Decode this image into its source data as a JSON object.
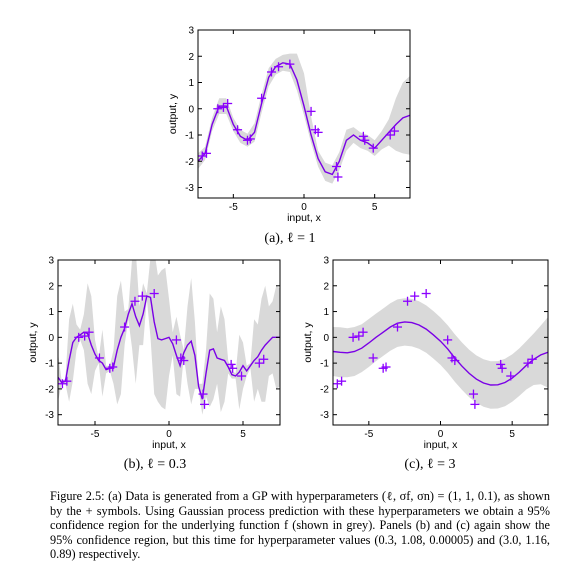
{
  "panels": [
    {
      "id": "a",
      "caption": "(a), ℓ = 1",
      "chart_data": {
        "type": "line",
        "xlabel": "input, x",
        "ylabel": "output, y",
        "xlim": [
          -7.5,
          7.5
        ],
        "ylim": [
          -3.4,
          3.0
        ],
        "xticks": [
          -5,
          0,
          5
        ],
        "yticks": [
          -3,
          -2,
          -1,
          0,
          1,
          2,
          3
        ],
        "series": [
          {
            "type": "line",
            "x": [
              -7.5,
              -7.0,
              -6.5,
              -6.0,
              -5.5,
              -5.0,
              -4.5,
              -4.0,
              -3.5,
              -3.0,
              -2.5,
              -2.0,
              -1.5,
              -1.0,
              -0.5,
              0.0,
              0.5,
              1.0,
              1.5,
              2.0,
              2.5,
              3.0,
              3.5,
              4.0,
              4.5,
              5.0,
              5.5,
              6.0,
              6.5,
              7.0,
              7.5
            ],
            "y": [
              -2.0,
              -1.7,
              -0.6,
              0.1,
              0.1,
              -0.6,
              -1.05,
              -1.2,
              -0.9,
              0.2,
              1.2,
              1.6,
              1.75,
              1.7,
              1.1,
              0.1,
              -1.0,
              -1.9,
              -2.4,
              -2.5,
              -2.0,
              -1.2,
              -1.0,
              -1.2,
              -1.3,
              -1.5,
              -1.2,
              -0.9,
              -0.6,
              -0.35,
              -0.25
            ]
          },
          {
            "type": "band",
            "x": [
              -7.5,
              -7.0,
              -6.5,
              -6.0,
              -5.5,
              -5.0,
              -4.5,
              -4.0,
              -3.5,
              -3.0,
              -2.5,
              -2.0,
              -1.5,
              -1.0,
              -0.5,
              0.0,
              0.5,
              1.0,
              1.5,
              2.0,
              2.5,
              3.0,
              3.5,
              4.0,
              4.5,
              5.0,
              5.5,
              6.0,
              6.5,
              7.0,
              7.5
            ],
            "lower": [
              -2.3,
              -1.95,
              -0.85,
              -0.2,
              -0.2,
              -0.85,
              -1.3,
              -1.45,
              -1.25,
              -0.15,
              0.85,
              1.3,
              1.45,
              1.4,
              0.7,
              -0.25,
              -1.3,
              -2.2,
              -2.75,
              -2.85,
              -2.35,
              -1.6,
              -1.3,
              -1.5,
              -1.6,
              -1.8,
              -1.55,
              -1.4,
              -1.6,
              -1.7,
              -1.75
            ],
            "upper": [
              -1.7,
              -1.45,
              -0.35,
              0.4,
              0.4,
              -0.35,
              -0.8,
              -0.95,
              -0.55,
              0.55,
              1.55,
              1.9,
              2.05,
              2.1,
              2.1,
              1.35,
              -0.3,
              -1.6,
              -2.05,
              -2.15,
              -1.65,
              -0.8,
              -0.7,
              -0.9,
              -1.0,
              -1.2,
              -0.85,
              -0.4,
              0.4,
              1.0,
              1.25
            ]
          },
          {
            "type": "scatter",
            "marker": "+",
            "x": [
              -7.2,
              -6.9,
              -6.1,
              -5.7,
              -5.4,
              -4.7,
              -4.0,
              -3.8,
              -3.0,
              -2.3,
              -1.8,
              -1.0,
              0.5,
              0.8,
              1.0,
              2.3,
              2.4,
              4.2,
              4.3,
              4.9,
              6.1,
              6.4
            ],
            "y": [
              -1.8,
              -1.7,
              0.0,
              0.05,
              0.2,
              -0.8,
              -1.2,
              -1.15,
              0.4,
              1.4,
              1.6,
              1.7,
              -0.1,
              -0.8,
              -0.9,
              -2.2,
              -2.6,
              -1.05,
              -1.2,
              -1.5,
              -1.0,
              -0.85
            ]
          }
        ]
      }
    },
    {
      "id": "b",
      "caption": "(b), ℓ = 0.3",
      "chart_data": {
        "type": "line",
        "xlabel": "input, x",
        "ylabel": "output, y",
        "xlim": [
          -7.5,
          7.5
        ],
        "ylim": [
          -3.4,
          3.0
        ],
        "xticks": [
          -5,
          0,
          5
        ],
        "yticks": [
          -3,
          -2,
          -1,
          0,
          1,
          2,
          3
        ],
        "series": [
          {
            "type": "line",
            "x": [
              -7.5,
              -7.25,
              -7.0,
              -6.75,
              -6.5,
              -6.25,
              -6.0,
              -5.75,
              -5.5,
              -5.25,
              -5.0,
              -4.75,
              -4.5,
              -4.25,
              -4.0,
              -3.75,
              -3.5,
              -3.25,
              -3.0,
              -2.75,
              -2.5,
              -2.25,
              -2.0,
              -1.75,
              -1.5,
              -1.25,
              -1.0,
              -0.75,
              -0.5,
              -0.25,
              0.0,
              0.25,
              0.5,
              0.75,
              1.0,
              1.25,
              1.5,
              1.75,
              2.0,
              2.25,
              2.5,
              2.75,
              3.0,
              3.25,
              3.5,
              3.75,
              4.0,
              4.25,
              4.5,
              4.75,
              5.0,
              5.25,
              5.5,
              5.75,
              6.0,
              6.25,
              6.5,
              6.75,
              7.0,
              7.25,
              7.5
            ],
            "y": [
              -1.55,
              -1.75,
              -1.7,
              -0.9,
              -0.2,
              0.0,
              0.1,
              0.2,
              0.15,
              -0.3,
              -0.65,
              -0.9,
              -1.0,
              -1.25,
              -1.2,
              -1.15,
              -0.5,
              0.0,
              0.35,
              0.9,
              1.3,
              0.8,
              0.45,
              0.9,
              1.6,
              1.55,
              0.6,
              -0.05,
              -0.1,
              -0.05,
              0.0,
              -0.25,
              -0.7,
              -1.1,
              -0.6,
              -0.3,
              -0.15,
              -0.7,
              -1.9,
              -2.4,
              -1.4,
              -0.5,
              -0.45,
              -0.8,
              -0.85,
              -0.9,
              -1.15,
              -1.45,
              -1.5,
              -1.35,
              -1.1,
              -1.3,
              -1.1,
              -0.9,
              -0.75,
              -0.5,
              -0.3,
              -0.15,
              0.0,
              0.0,
              0.0
            ]
          },
          {
            "type": "band",
            "x": [
              -7.5,
              -7.25,
              -7.0,
              -6.75,
              -6.5,
              -6.25,
              -6.0,
              -5.75,
              -5.5,
              -5.25,
              -5.0,
              -4.75,
              -4.5,
              -4.25,
              -4.0,
              -3.75,
              -3.5,
              -3.25,
              -3.0,
              -2.75,
              -2.5,
              -2.25,
              -2.0,
              -1.75,
              -1.5,
              -1.25,
              -1.0,
              -0.75,
              -0.5,
              -0.25,
              0.0,
              0.25,
              0.5,
              0.75,
              1.0,
              1.25,
              1.5,
              1.75,
              2.0,
              2.25,
              2.5,
              2.75,
              3.0,
              3.25,
              3.5,
              3.75,
              4.0,
              4.25,
              4.5,
              4.75,
              5.0,
              5.25,
              5.5,
              5.75,
              6.0,
              6.25,
              6.5,
              6.75,
              7.0,
              7.25,
              7.5
            ],
            "lower": [
              -2.5,
              -1.8,
              -1.8,
              -2.5,
              -1.7,
              -0.5,
              -0.1,
              -0.5,
              -1.8,
              -2.2,
              -1.3,
              -1.0,
              -2.3,
              -1.4,
              -1.3,
              -1.8,
              -2.6,
              -2.2,
              -0.3,
              0.7,
              -0.4,
              -1.8,
              -0.3,
              -0.3,
              1.5,
              0.0,
              -2.2,
              -2.5,
              -2.7,
              -2.8,
              -1.5,
              -0.7,
              -2.2,
              -2.3,
              -0.7,
              -1.8,
              -2.6,
              -2.0,
              -2.0,
              -3.0,
              -2.3,
              -2.7,
              -2.4,
              -1.8,
              -2.9,
              -2.5,
              -1.4,
              -1.6,
              -1.6,
              -2.8,
              -2.0,
              -1.5,
              -1.2,
              -2.5,
              -2.0,
              -2.5,
              -2.5,
              -1.5,
              -1.4,
              -2.0,
              -1.9
            ],
            "upper": [
              -0.6,
              -1.7,
              -1.6,
              0.7,
              1.3,
              0.5,
              0.3,
              0.9,
              2.1,
              1.6,
              -0.1,
              -0.8,
              0.3,
              -1.1,
              -1.1,
              -0.5,
              1.6,
              2.2,
              1.0,
              1.1,
              3.0,
              3.4,
              1.2,
              2.1,
              1.7,
              3.1,
              3.4,
              2.4,
              2.6,
              2.7,
              1.5,
              0.2,
              0.8,
              0.1,
              -0.5,
              1.2,
              2.3,
              0.6,
              -1.8,
              -1.8,
              -0.5,
              1.7,
              1.5,
              0.2,
              1.2,
              0.7,
              -0.9,
              -1.3,
              -1.4,
              0.1,
              -0.2,
              -1.1,
              -1.0,
              0.7,
              0.5,
              1.5,
              2.0,
              1.2,
              1.4,
              2.0,
              1.9
            ]
          },
          {
            "type": "scatter",
            "marker": "+",
            "x": [
              -7.2,
              -6.9,
              -6.1,
              -5.7,
              -5.4,
              -4.7,
              -4.0,
              -3.8,
              -3.0,
              -2.3,
              -1.8,
              -1.0,
              0.5,
              0.8,
              1.0,
              2.3,
              2.4,
              4.2,
              4.3,
              4.9,
              6.1,
              6.4
            ],
            "y": [
              -1.8,
              -1.7,
              0.0,
              0.05,
              0.2,
              -0.8,
              -1.2,
              -1.15,
              0.4,
              1.4,
              1.6,
              1.7,
              -0.1,
              -0.8,
              -0.9,
              -2.2,
              -2.6,
              -1.05,
              -1.2,
              -1.5,
              -1.0,
              -0.85
            ]
          }
        ]
      }
    },
    {
      "id": "c",
      "caption": "(c), ℓ = 3",
      "chart_data": {
        "type": "line",
        "xlabel": "input, x",
        "ylabel": "output, y",
        "xlim": [
          -7.5,
          7.5
        ],
        "ylim": [
          -3.4,
          3.0
        ],
        "xticks": [
          -5,
          0,
          5
        ],
        "yticks": [
          -3,
          -2,
          -1,
          0,
          1,
          2,
          3
        ],
        "series": [
          {
            "type": "line",
            "x": [
              -7.5,
              -7.0,
              -6.5,
              -6.0,
              -5.5,
              -5.0,
              -4.5,
              -4.0,
              -3.5,
              -3.0,
              -2.5,
              -2.0,
              -1.5,
              -1.0,
              -0.5,
              0.0,
              0.5,
              1.0,
              1.5,
              2.0,
              2.5,
              3.0,
              3.5,
              4.0,
              4.5,
              5.0,
              5.5,
              6.0,
              6.5,
              7.0,
              7.5
            ],
            "y": [
              -0.55,
              -0.58,
              -0.6,
              -0.55,
              -0.42,
              -0.22,
              0.0,
              0.2,
              0.4,
              0.55,
              0.6,
              0.57,
              0.48,
              0.32,
              0.1,
              -0.15,
              -0.45,
              -0.8,
              -1.12,
              -1.4,
              -1.62,
              -1.77,
              -1.85,
              -1.84,
              -1.75,
              -1.58,
              -1.35,
              -1.08,
              -0.85,
              -0.68,
              -0.58
            ]
          },
          {
            "type": "band",
            "x": [
              -7.5,
              -7.0,
              -6.5,
              -6.0,
              -5.5,
              -5.0,
              -4.5,
              -4.0,
              -3.5,
              -3.0,
              -2.5,
              -2.0,
              -1.5,
              -1.0,
              -0.5,
              0.0,
              0.5,
              1.0,
              1.5,
              2.0,
              2.5,
              3.0,
              3.5,
              4.0,
              4.5,
              5.0,
              5.5,
              6.0,
              6.5,
              7.0,
              7.5
            ],
            "lower": [
              -1.5,
              -1.55,
              -1.55,
              -1.5,
              -1.35,
              -1.15,
              -0.92,
              -0.72,
              -0.52,
              -0.37,
              -0.32,
              -0.35,
              -0.44,
              -0.6,
              -0.82,
              -1.07,
              -1.37,
              -1.72,
              -2.04,
              -2.32,
              -2.54,
              -2.69,
              -2.77,
              -2.76,
              -2.67,
              -2.5,
              -2.27,
              -2.02,
              -1.85,
              -1.82,
              -1.95
            ],
            "upper": [
              0.4,
              0.39,
              0.35,
              0.4,
              0.51,
              0.71,
              0.92,
              1.12,
              1.32,
              1.47,
              1.52,
              1.49,
              1.4,
              1.24,
              1.02,
              0.77,
              0.47,
              0.12,
              -0.2,
              -0.48,
              -0.7,
              -0.85,
              -0.93,
              -0.92,
              -0.83,
              -0.66,
              -0.43,
              -0.14,
              0.15,
              0.46,
              0.79
            ]
          },
          {
            "type": "scatter",
            "marker": "+",
            "x": [
              -7.2,
              -6.9,
              -6.1,
              -5.7,
              -5.4,
              -4.7,
              -4.0,
              -3.8,
              -3.0,
              -2.3,
              -1.8,
              -1.0,
              0.5,
              0.8,
              1.0,
              2.3,
              2.4,
              4.2,
              4.3,
              4.9,
              6.1,
              6.4
            ],
            "y": [
              -1.8,
              -1.7,
              0.0,
              0.05,
              0.2,
              -0.8,
              -1.2,
              -1.15,
              0.4,
              1.4,
              1.6,
              1.7,
              -0.1,
              -0.8,
              -0.9,
              -2.2,
              -2.6,
              -1.05,
              -1.2,
              -1.5,
              -1.0,
              -0.85
            ]
          }
        ]
      }
    }
  ],
  "figure_caption": "Figure 2.5: (a) Data is generated from a GP with hyperparameters (ℓ, σf, σn) = (1, 1, 0.1), as shown by the + symbols. Using Gaussian process prediction with these hyperparameters we obtain a 95% confidence region for the underlying function f (shown in grey). Panels (b) and (c) again show the 95% confidence region, but this time for hyperparameter values (0.3, 1.08, 0.00005) and (3.0, 1.16, 0.89) respectively.",
  "colors": {
    "band": "#d9d9d9",
    "line": "#7a00e6",
    "points": "#8b00ff",
    "axis": "#000000"
  }
}
